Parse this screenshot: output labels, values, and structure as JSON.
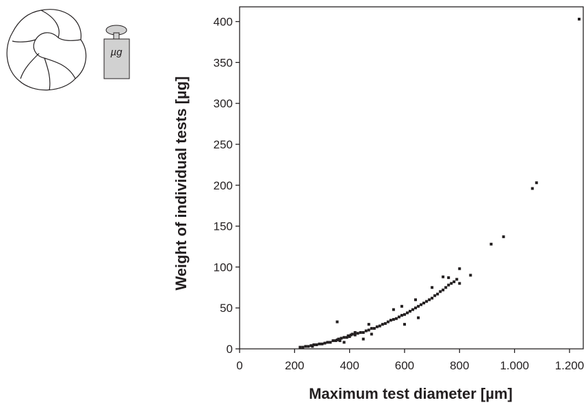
{
  "chart_data": {
    "type": "scatter",
    "xlabel": "Maximum test diameter [µm]",
    "ylabel": "Weight of individual tests [µg]",
    "icon_label": "µg",
    "color": "#231f20",
    "xlim": [
      0,
      1250
    ],
    "ylim": [
      0,
      418
    ],
    "xticks": [
      0,
      200,
      400,
      600,
      800,
      {
        "value": 1000,
        "label": "1.000"
      },
      {
        "value": 1200,
        "label": "1.200"
      }
    ],
    "yticks": [
      0,
      50,
      100,
      150,
      200,
      250,
      300,
      350,
      400
    ],
    "x": [
      220,
      230,
      240,
      250,
      260,
      265,
      270,
      280,
      290,
      300,
      310,
      320,
      330,
      340,
      350,
      355,
      360,
      365,
      370,
      380,
      390,
      395,
      400,
      405,
      410,
      420,
      430,
      440,
      450,
      460,
      470,
      480,
      490,
      500,
      510,
      520,
      530,
      540,
      550,
      560,
      570,
      580,
      590,
      600,
      610,
      620,
      630,
      640,
      650,
      660,
      670,
      680,
      690,
      700,
      710,
      720,
      730,
      740,
      750,
      760,
      770,
      780,
      790,
      800,
      840,
      915,
      960,
      1065,
      1080,
      1235,
      355,
      470,
      560,
      590,
      640,
      700,
      740,
      760,
      800,
      600,
      650,
      480,
      420,
      380,
      450
    ],
    "y": [
      2,
      2,
      3,
      3,
      4,
      3,
      5,
      5,
      6,
      6,
      7,
      8,
      8,
      10,
      10,
      11,
      12,
      10,
      13,
      14,
      14,
      16,
      15,
      17,
      18,
      17,
      19,
      20,
      20,
      22,
      23,
      25,
      25,
      27,
      28,
      30,
      31,
      33,
      35,
      36,
      37,
      39,
      41,
      42,
      44,
      46,
      48,
      50,
      52,
      54,
      56,
      58,
      60,
      62,
      65,
      67,
      70,
      72,
      75,
      78,
      80,
      82,
      85,
      80,
      90,
      128,
      137,
      196,
      203,
      403,
      33,
      30,
      48,
      52,
      60,
      75,
      88,
      87,
      98,
      30,
      38,
      18,
      20,
      8,
      12
    ]
  }
}
